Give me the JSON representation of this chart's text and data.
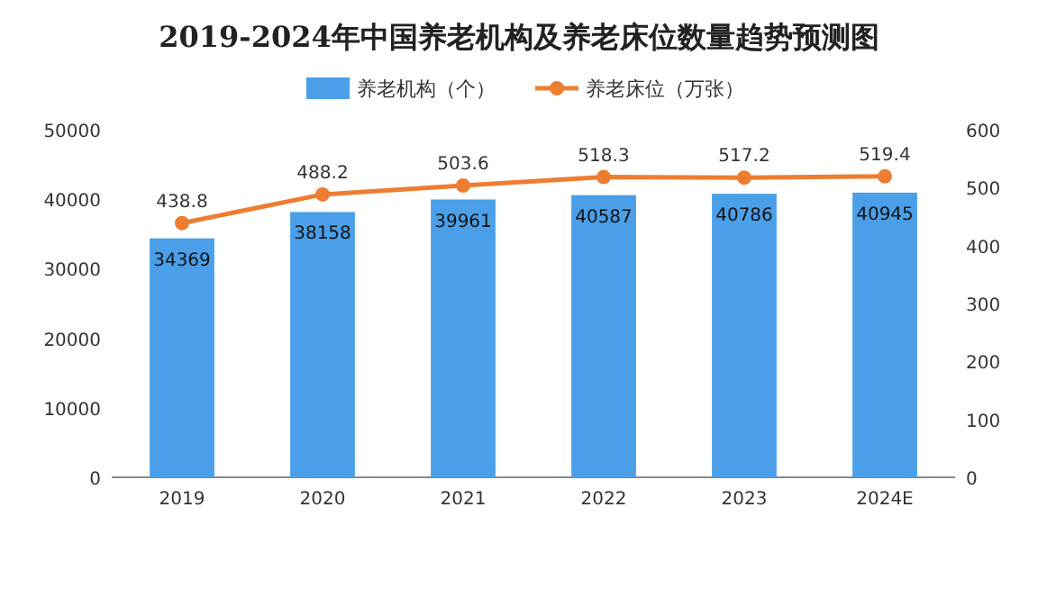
{
  "chart_data": {
    "type": "bar",
    "title": "2019-2024年中国养老机构及养老床位数量趋势预测图",
    "categories": [
      "2019",
      "2020",
      "2021",
      "2022",
      "2023",
      "2024E"
    ],
    "series": [
      {
        "name": "养老机构（个）",
        "color": "#4a9fe8",
        "values": [
          34369,
          38158,
          39961,
          40587,
          40786,
          40945
        ]
      },
      {
        "name": "养老床位（万张）",
        "type": "line",
        "axis": "y2",
        "color": "#ed7d31",
        "values": [
          438.8,
          488.2,
          503.6,
          518.3,
          517.2,
          519.4
        ]
      }
    ],
    "ylim": [
      0,
      50000
    ],
    "yticks": [
      0,
      10000,
      20000,
      30000,
      40000,
      50000
    ],
    "y2lim": [
      0,
      600
    ],
    "y2ticks": [
      0,
      100,
      200,
      300,
      400,
      500,
      600
    ],
    "data_labels": true,
    "legend": "top",
    "marker": "circle",
    "grid": false
  }
}
